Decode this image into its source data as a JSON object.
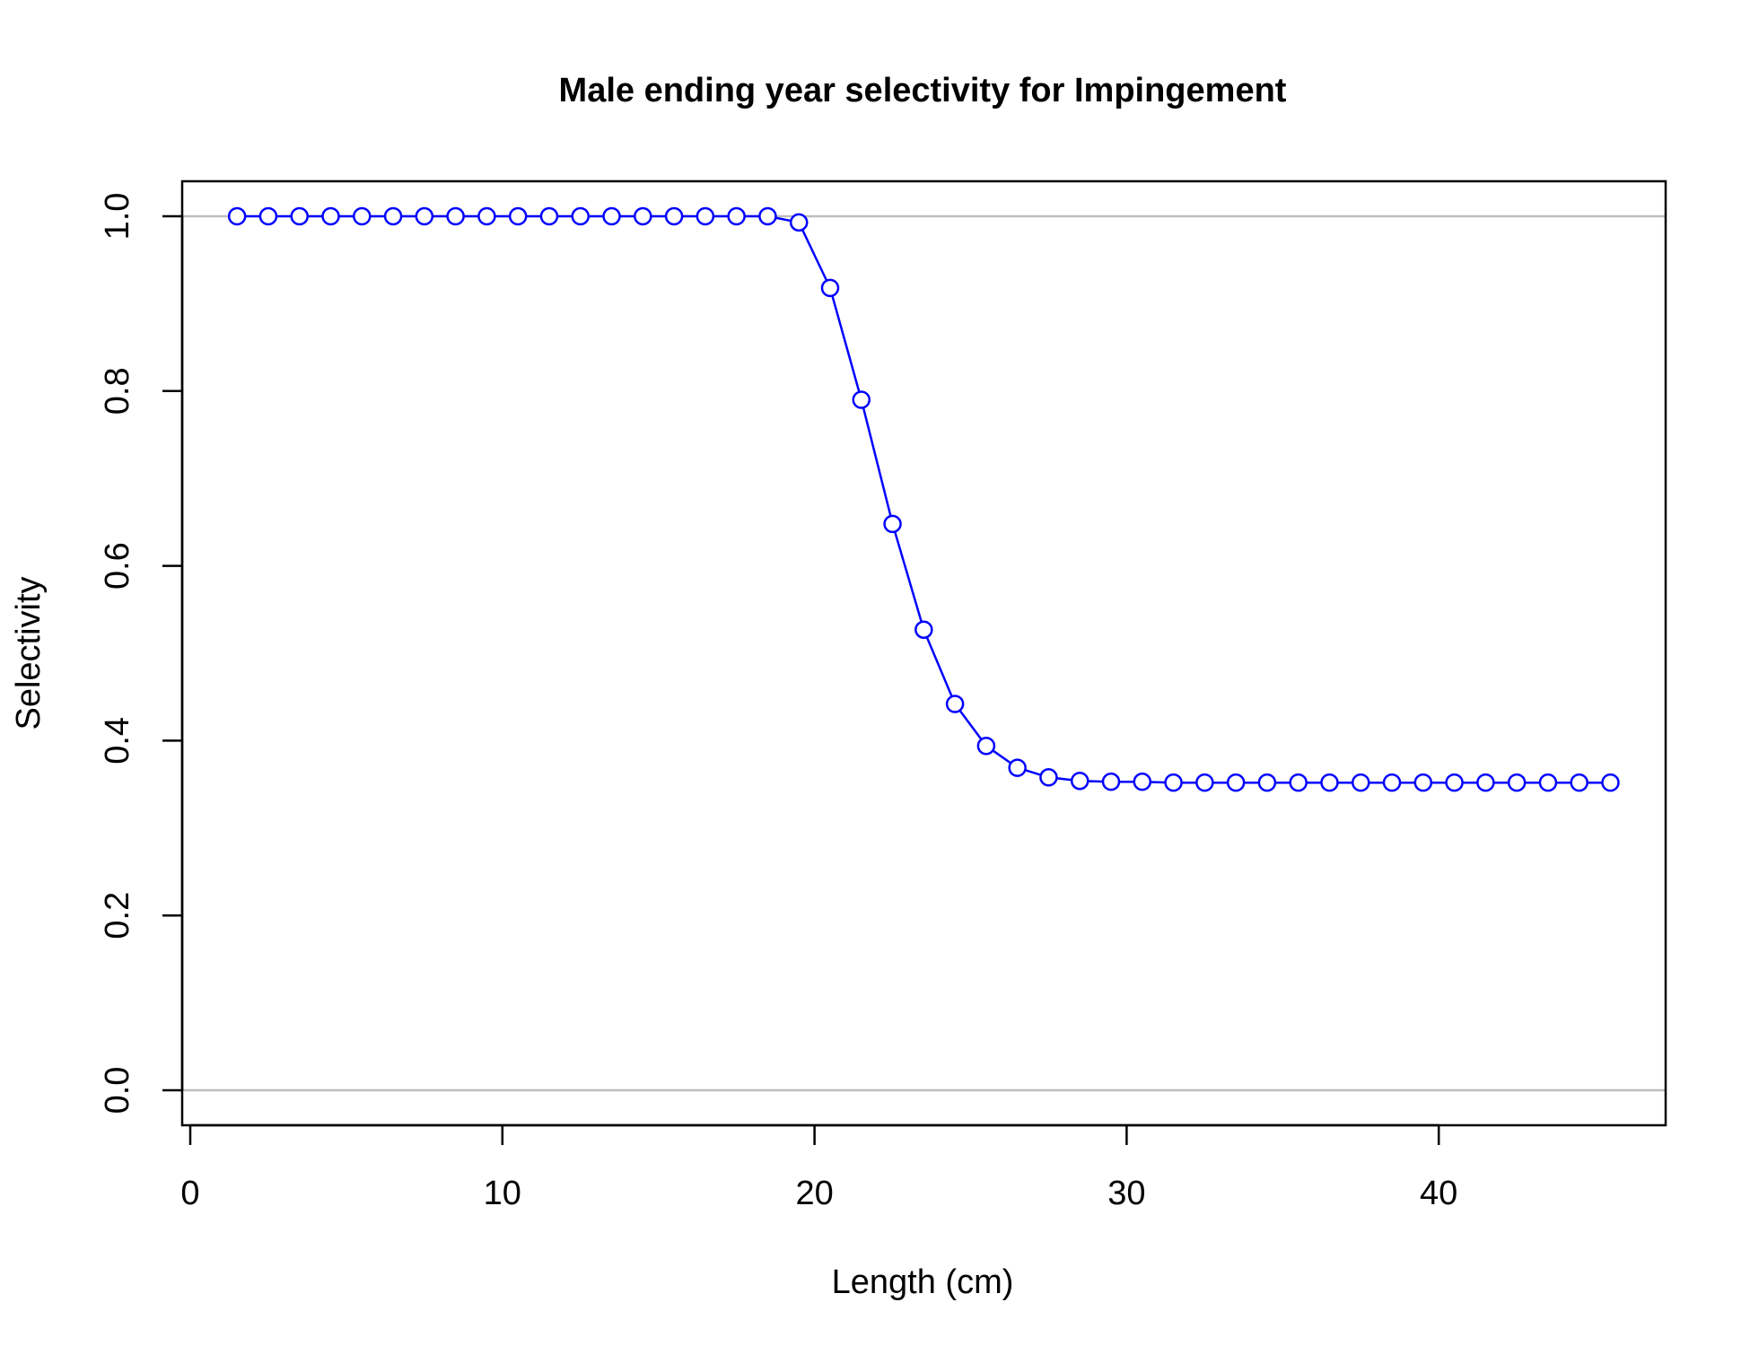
{
  "chart_data": {
    "type": "line",
    "title": "Male ending year selectivity for Impingement",
    "xlabel": "Length (cm)",
    "ylabel": "Selectivity",
    "xlim": [
      0,
      47
    ],
    "ylim": [
      0,
      1
    ],
    "x_ticks": [
      0,
      10,
      20,
      30,
      40
    ],
    "y_ticks": [
      0.0,
      0.2,
      0.4,
      0.6,
      0.8,
      1.0
    ],
    "y_tick_labels": [
      "0.0",
      "0.2",
      "0.4",
      "0.6",
      "0.8",
      "1.0"
    ],
    "reference_lines_y": [
      0,
      1
    ],
    "reference_line_color": "#bebebe",
    "series_color": "#0000ff",
    "marker": "open-circle",
    "x": [
      1.5,
      2.5,
      3.5,
      4.5,
      5.5,
      6.5,
      7.5,
      8.5,
      9.5,
      10.5,
      11.5,
      12.5,
      13.5,
      14.5,
      15.5,
      16.5,
      17.5,
      18.5,
      19.5,
      20.5,
      21.5,
      22.5,
      23.5,
      24.5,
      25.5,
      26.5,
      27.5,
      28.5,
      29.5,
      30.5,
      31.5,
      32.5,
      33.5,
      34.5,
      35.5,
      36.5,
      37.5,
      38.5,
      39.5,
      40.5,
      41.5,
      42.5,
      43.5,
      44.5,
      45.5
    ],
    "y": [
      1.0,
      1.0,
      1.0,
      1.0,
      1.0,
      1.0,
      1.0,
      1.0,
      1.0,
      1.0,
      1.0,
      1.0,
      1.0,
      1.0,
      1.0,
      1.0,
      1.0,
      1.0,
      0.993,
      0.918,
      0.79,
      0.648,
      0.527,
      0.442,
      0.394,
      0.369,
      0.358,
      0.354,
      0.353,
      0.353,
      0.352,
      0.352,
      0.352,
      0.352,
      0.352,
      0.352,
      0.352,
      0.352,
      0.352,
      0.352,
      0.352,
      0.352,
      0.352,
      0.352,
      0.352
    ]
  }
}
